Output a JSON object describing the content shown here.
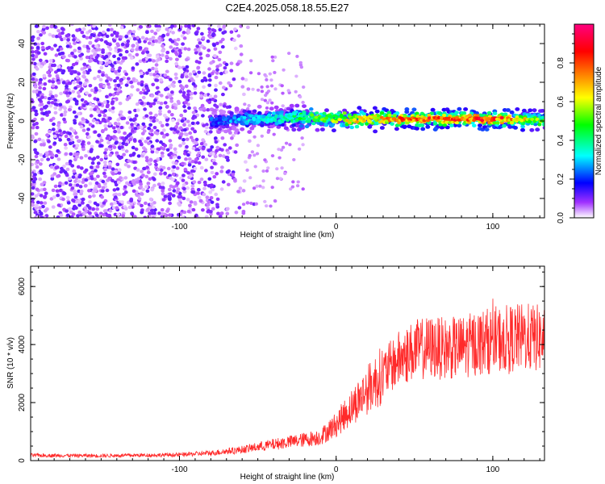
{
  "chart_data": [
    {
      "type": "heatmap",
      "title": "C2E4.2025.058.18.55.E27",
      "xlabel": "Height of straight line (km)",
      "ylabel": "Frequency (Hz)",
      "xlim": [
        -195,
        133
      ],
      "ylim": [
        -50,
        50
      ],
      "xticks": [
        -100,
        0,
        100
      ],
      "yticks": [
        -40,
        -20,
        0,
        20,
        40
      ],
      "colorbar": {
        "label": "Normalized spectral amplitude",
        "range": [
          0.0,
          1.0
        ],
        "ticks": [
          0.0,
          0.2,
          0.4,
          0.6,
          0.8
        ],
        "colormap": [
          "#ffffff",
          "#8000ff",
          "#0000ff",
          "#00ffff",
          "#00ff00",
          "#ffff00",
          "#ff8000",
          "#ff0000",
          "#ff0080"
        ]
      },
      "description_points": [
        {
          "x": -195,
          "band": "broadband noise",
          "amplitude": 0.12
        },
        {
          "x": -60,
          "band": "broadband noise edge",
          "amplitude": 0.05
        },
        {
          "x": -75,
          "freq": 0,
          "amplitude": 0.25
        },
        {
          "x": -30,
          "freq": 2,
          "amplitude": 0.4
        },
        {
          "x": 0,
          "freq": 1,
          "amplitude": 0.6
        },
        {
          "x": 50,
          "freq": 1,
          "amplitude": 0.85
        },
        {
          "x": 105,
          "freq": 1,
          "amplitude": 0.85
        },
        {
          "x": 133,
          "freq": 0,
          "amplitude": 0.5
        }
      ]
    },
    {
      "type": "line",
      "title": "",
      "xlabel": "Height of straight line (km)",
      "ylabel": "SNR (10 * v/v)",
      "xlim": [
        -195,
        133
      ],
      "ylim": [
        0,
        6700
      ],
      "xticks": [
        -100,
        0,
        100
      ],
      "yticks": [
        0,
        2000,
        4000,
        6000
      ],
      "series": [
        {
          "name": "SNR",
          "color": "#ff2a2a",
          "x": [
            -195,
            -150,
            -100,
            -80,
            -60,
            -40,
            -20,
            -10,
            0,
            10,
            20,
            30,
            40,
            50,
            60,
            70,
            80,
            90,
            100,
            110,
            120,
            133
          ],
          "values": [
            180,
            170,
            200,
            260,
            380,
            560,
            720,
            820,
            1250,
            1850,
            2450,
            3000,
            3500,
            3800,
            3900,
            3850,
            3900,
            4050,
            4150,
            4200,
            4250,
            4200
          ]
        }
      ]
    }
  ]
}
